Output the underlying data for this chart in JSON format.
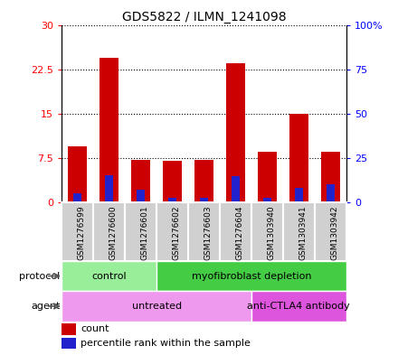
{
  "title": "GDS5822 / ILMN_1241098",
  "samples": [
    "GSM1276599",
    "GSM1276600",
    "GSM1276601",
    "GSM1276602",
    "GSM1276603",
    "GSM1276604",
    "GSM1303940",
    "GSM1303941",
    "GSM1303942"
  ],
  "counts": [
    9.5,
    24.5,
    7.2,
    7.0,
    7.2,
    23.5,
    8.5,
    15.0,
    8.5
  ],
  "percentile_ranks": [
    5.0,
    15.5,
    7.0,
    2.5,
    2.5,
    15.0,
    2.5,
    8.0,
    10.0
  ],
  "ylim_left": [
    0,
    30
  ],
  "ylim_right": [
    0,
    100
  ],
  "yticks_left": [
    0,
    7.5,
    15,
    22.5,
    30
  ],
  "yticks_right": [
    0,
    25,
    50,
    75,
    100
  ],
  "yticklabels_left": [
    "0",
    "7.5",
    "15",
    "22.5",
    "30"
  ],
  "yticklabels_right": [
    "0",
    "25",
    "50",
    "75",
    "100%"
  ],
  "bar_color": "#cc0000",
  "percentile_color": "#2222cc",
  "protocol_groups": [
    {
      "label": "control",
      "start": 0,
      "end": 3,
      "color": "#99ee99"
    },
    {
      "label": "myofibroblast depletion",
      "start": 3,
      "end": 9,
      "color": "#44cc44"
    }
  ],
  "agent_groups": [
    {
      "label": "untreated",
      "start": 0,
      "end": 6,
      "color": "#ee99ee"
    },
    {
      "label": "anti-CTLA4 antibody",
      "start": 6,
      "end": 9,
      "color": "#dd55dd"
    }
  ],
  "protocol_label": "protocol",
  "agent_label": "agent",
  "legend_count": "count",
  "legend_percentile": "percentile rank within the sample",
  "bar_width": 0.6,
  "blue_bar_width": 0.25
}
